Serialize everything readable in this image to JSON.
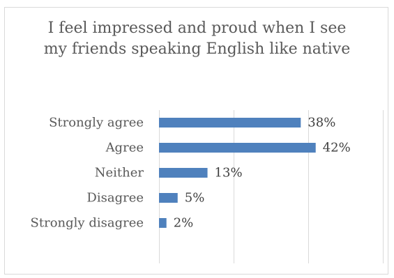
{
  "chart_data": {
    "type": "bar",
    "orientation": "horizontal",
    "title": "I feel impressed and proud when I see my friends speaking English like native",
    "categories": [
      "Strongly agree",
      "Agree",
      "Neither",
      "Disagree",
      "Strongly disagree"
    ],
    "values": [
      38,
      42,
      13,
      5,
      2
    ],
    "data_labels": [
      "38%",
      "42%",
      "13%",
      "5%",
      "2%"
    ],
    "unit": "%",
    "xlim": [
      0,
      60
    ],
    "grid": true,
    "axis_tick_labels_visible": false,
    "legend": "none",
    "colors": {
      "bar": "#4f81bd",
      "grid": "#d9d9d9",
      "text": "#595959",
      "border": "#d9d9d9"
    }
  }
}
